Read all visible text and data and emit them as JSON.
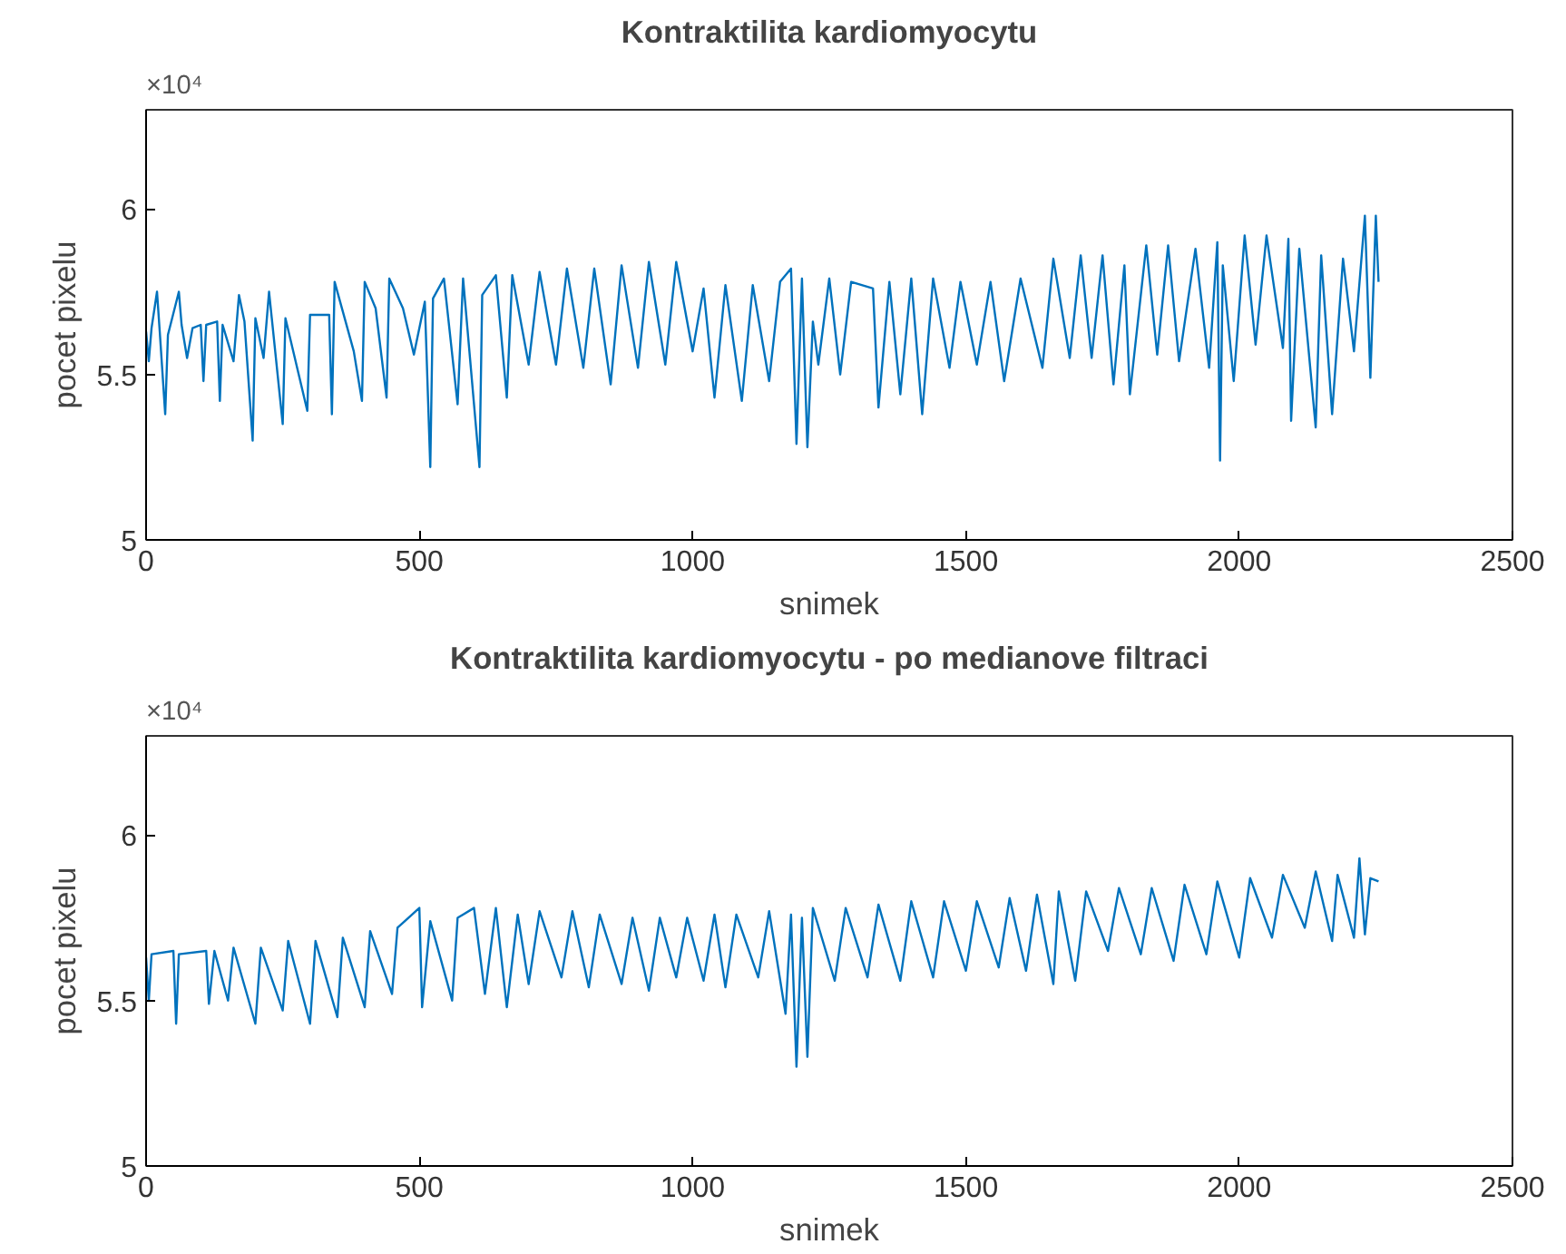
{
  "chart_data": [
    {
      "type": "line",
      "title": "Kontraktilita kardiomyocytu",
      "xlabel": "snimek",
      "ylabel": "pocet pixelu",
      "annotations": [
        "×10⁴"
      ],
      "xlim": [
        0,
        2500
      ],
      "xticks": [
        0,
        500,
        1000,
        1500,
        2000,
        2500
      ],
      "ylim": [
        5,
        6.3
      ],
      "yticks": [
        5,
        5.5,
        6
      ],
      "grid": false,
      "series": [
        {
          "color": "#0072bd",
          "x": [
            0,
            5,
            10,
            20,
            25,
            35,
            40,
            60,
            65,
            75,
            85,
            100,
            105,
            110,
            130,
            135,
            140,
            160,
            170,
            180,
            195,
            200,
            215,
            225,
            230,
            250,
            255,
            295,
            300,
            335,
            340,
            345,
            360,
            380,
            395,
            400,
            420,
            440,
            445,
            470,
            490,
            510,
            520,
            525,
            545,
            570,
            580,
            610,
            615,
            640,
            660,
            670,
            700,
            720,
            750,
            770,
            800,
            820,
            850,
            870,
            900,
            920,
            950,
            970,
            1000,
            1020,
            1040,
            1060,
            1090,
            1110,
            1140,
            1160,
            1180,
            1190,
            1200,
            1210,
            1220,
            1230,
            1250,
            1270,
            1290,
            1330,
            1340,
            1360,
            1380,
            1400,
            1420,
            1440,
            1470,
            1490,
            1520,
            1545,
            1570,
            1600,
            1640,
            1660,
            1690,
            1710,
            1730,
            1750,
            1770,
            1790,
            1800,
            1830,
            1850,
            1870,
            1890,
            1920,
            1945,
            1960,
            1965,
            1970,
            1990,
            2010,
            2030,
            2050,
            2080,
            2090,
            2095,
            2110,
            2140,
            2150,
            2170,
            2190,
            2210,
            2230,
            2240,
            2250,
            2255
          ],
          "values": [
            5.63,
            5.54,
            5.64,
            5.75,
            5.63,
            5.38,
            5.62,
            5.75,
            5.65,
            5.55,
            5.64,
            5.65,
            5.48,
            5.65,
            5.66,
            5.42,
            5.65,
            5.54,
            5.74,
            5.66,
            5.3,
            5.67,
            5.55,
            5.75,
            5.67,
            5.35,
            5.67,
            5.39,
            5.68,
            5.68,
            5.38,
            5.78,
            5.69,
            5.57,
            5.42,
            5.78,
            5.7,
            5.43,
            5.79,
            5.7,
            5.56,
            5.72,
            5.22,
            5.73,
            5.79,
            5.41,
            5.79,
            5.22,
            5.74,
            5.8,
            5.43,
            5.8,
            5.53,
            5.81,
            5.53,
            5.82,
            5.52,
            5.82,
            5.47,
            5.83,
            5.52,
            5.84,
            5.53,
            5.84,
            5.57,
            5.76,
            5.43,
            5.77,
            5.42,
            5.77,
            5.48,
            5.78,
            5.82,
            5.29,
            5.79,
            5.28,
            5.66,
            5.53,
            5.79,
            5.5,
            5.78,
            5.76,
            5.4,
            5.78,
            5.44,
            5.79,
            5.38,
            5.79,
            5.52,
            5.78,
            5.53,
            5.78,
            5.48,
            5.79,
            5.52,
            5.85,
            5.55,
            5.86,
            5.55,
            5.86,
            5.47,
            5.83,
            5.44,
            5.89,
            5.56,
            5.89,
            5.54,
            5.88,
            5.52,
            5.9,
            5.24,
            5.83,
            5.48,
            5.92,
            5.59,
            5.92,
            5.58,
            5.91,
            5.36,
            5.88,
            5.34,
            5.86,
            5.38,
            5.85,
            5.57,
            5.98,
            5.49,
            5.98,
            5.78
          ]
        }
      ]
    },
    {
      "type": "line",
      "title": "Kontraktilita kardiomyocytu - po medianove filtraci",
      "xlabel": "snimek",
      "ylabel": "pocet pixelu",
      "annotations": [
        "×10⁴"
      ],
      "xlim": [
        0,
        2500
      ],
      "xticks": [
        0,
        500,
        1000,
        1500,
        2000,
        2500
      ],
      "ylim": [
        5,
        6.3
      ],
      "yticks": [
        5,
        5.5,
        6
      ],
      "grid": false,
      "series": [
        {
          "color": "#0072bd",
          "x": [
            0,
            5,
            10,
            50,
            55,
            60,
            110,
            115,
            125,
            150,
            160,
            200,
            210,
            250,
            260,
            300,
            310,
            350,
            360,
            400,
            410,
            450,
            460,
            500,
            505,
            520,
            560,
            570,
            600,
            620,
            640,
            660,
            680,
            700,
            720,
            760,
            780,
            810,
            830,
            870,
            890,
            920,
            940,
            970,
            990,
            1020,
            1040,
            1060,
            1080,
            1120,
            1140,
            1170,
            1180,
            1190,
            1200,
            1210,
            1220,
            1260,
            1280,
            1320,
            1340,
            1380,
            1400,
            1440,
            1460,
            1500,
            1520,
            1560,
            1580,
            1610,
            1630,
            1660,
            1670,
            1700,
            1720,
            1760,
            1780,
            1820,
            1840,
            1880,
            1900,
            1940,
            1960,
            2000,
            2020,
            2060,
            2080,
            2120,
            2140,
            2170,
            2180,
            2210,
            2220,
            2230,
            2240,
            2255
          ],
          "values": [
            5.63,
            5.5,
            5.64,
            5.65,
            5.43,
            5.64,
            5.65,
            5.49,
            5.65,
            5.5,
            5.66,
            5.43,
            5.66,
            5.47,
            5.68,
            5.43,
            5.68,
            5.45,
            5.69,
            5.48,
            5.71,
            5.52,
            5.72,
            5.78,
            5.48,
            5.74,
            5.5,
            5.75,
            5.78,
            5.52,
            5.78,
            5.48,
            5.76,
            5.55,
            5.77,
            5.57,
            5.77,
            5.54,
            5.76,
            5.55,
            5.75,
            5.53,
            5.75,
            5.57,
            5.75,
            5.56,
            5.76,
            5.54,
            5.76,
            5.57,
            5.77,
            5.46,
            5.76,
            5.3,
            5.75,
            5.33,
            5.78,
            5.56,
            5.78,
            5.57,
            5.79,
            5.56,
            5.8,
            5.57,
            5.8,
            5.59,
            5.8,
            5.6,
            5.81,
            5.59,
            5.82,
            5.55,
            5.83,
            5.56,
            5.83,
            5.65,
            5.84,
            5.64,
            5.84,
            5.62,
            5.85,
            5.64,
            5.86,
            5.63,
            5.87,
            5.69,
            5.88,
            5.72,
            5.89,
            5.68,
            5.88,
            5.69,
            5.93,
            5.7,
            5.87,
            5.86
          ]
        }
      ]
    }
  ]
}
